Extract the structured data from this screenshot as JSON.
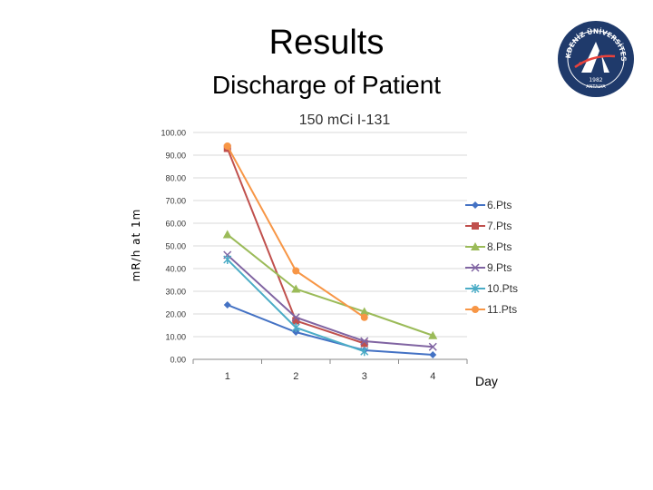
{
  "slide": {
    "title": "Results",
    "subtitle": "Discharge of Patient",
    "logo_text_top": "AKDENİZ ÜNİVERSİTESİ",
    "logo_year": "1982",
    "logo_city": "ANTALYA",
    "x_axis_title": "Day",
    "y_axis_title": "mR/h  at  1m"
  },
  "colors": {
    "6.Pts": "#4472c4",
    "7.Pts": "#c0504d",
    "8.Pts": "#9bbb59",
    "9.Pts": "#8064a2",
    "10.Pts": "#4bacc6",
    "11.Pts": "#f79646",
    "logo": "#1f3a6b"
  },
  "chart_data": {
    "type": "line",
    "title": "150 mCi I-131",
    "xlabel": "Day",
    "ylabel": "mR/h  at  1m",
    "categories": [
      "1",
      "2",
      "3",
      "4"
    ],
    "ylim": [
      0,
      100
    ],
    "yticks": [
      "0.00",
      "10.00",
      "20.00",
      "30.00",
      "40.00",
      "50.00",
      "60.00",
      "70.00",
      "80.00",
      "90.00",
      "100.00"
    ],
    "legend_position": "right",
    "series": [
      {
        "name": "6.Pts",
        "marker": "diamond",
        "values": [
          24,
          12,
          4,
          2
        ]
      },
      {
        "name": "7.Pts",
        "marker": "square",
        "values": [
          93,
          17,
          7,
          null
        ]
      },
      {
        "name": "8.Pts",
        "marker": "triangle",
        "values": [
          55,
          31,
          21,
          10.5
        ]
      },
      {
        "name": "9.Pts",
        "marker": "x",
        "values": [
          46,
          18.5,
          8,
          5.5
        ]
      },
      {
        "name": "10.Pts",
        "marker": "star",
        "values": [
          44,
          14,
          3.5,
          null
        ]
      },
      {
        "name": "11.Pts",
        "marker": "circle",
        "values": [
          94,
          39,
          18.5,
          null
        ]
      }
    ]
  }
}
